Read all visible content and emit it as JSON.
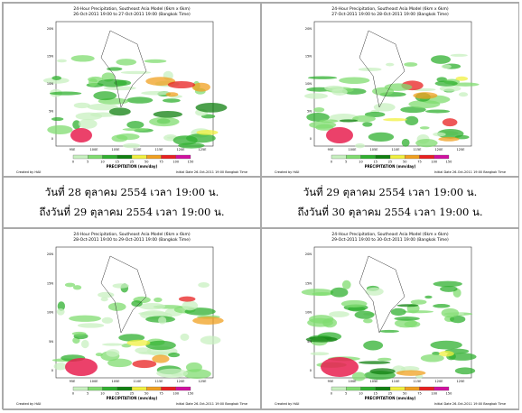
{
  "panels": [
    {
      "title": "24-Hour Precipitation, Southeast Asia Model (6km x 6km)",
      "period": "26-Oct-2011 19:00 to 27-Oct-2011 19:00 (Bangkok Time)",
      "colorbar_label": "PRECIPITATION (mm/day)",
      "colorbar_ticks": [
        "0",
        "5",
        "10",
        "15",
        "25",
        "50",
        "75",
        "100",
        "150"
      ],
      "credit": "Created by HAII",
      "initial": "Initial Date 26-Oct-2011 19:00 Bangkok Time",
      "lat_labels": [
        "20N",
        "15N",
        "10N",
        "5N",
        "0"
      ],
      "lon_labels": [
        "95E",
        "100E",
        "105E",
        "110E",
        "115E",
        "120E",
        "125E"
      ]
    },
    {
      "title": "24-Hour Precipitation, Southeast Asia Model (6km x 6km)",
      "period": "27-Oct-2011 19:00 to 28-Oct-2011 19:00 (Bangkok Time)",
      "colorbar_label": "PRECIPITATION (mm/day)",
      "colorbar_ticks": [
        "0",
        "5",
        "10",
        "15",
        "25",
        "50",
        "75",
        "100",
        "150"
      ],
      "credit": "Created by HAII",
      "initial": "Initial Date 26-Oct-2011 19:00 Bangkok Time",
      "lat_labels": [
        "20N",
        "15N",
        "10N",
        "5N",
        "0"
      ],
      "lon_labels": [
        "95E",
        "100E",
        "105E",
        "110E",
        "115E",
        "120E",
        "125E"
      ]
    },
    {
      "title": "24-Hour Precipitation, Southeast Asia Model (6km x 6km)",
      "period": "28-Oct-2011 19:00 to 29-Oct-2011 19:00 (Bangkok Time)",
      "colorbar_label": "PRECIPITATION (mm/day)",
      "colorbar_ticks": [
        "0",
        "5",
        "10",
        "15",
        "25",
        "50",
        "75",
        "100",
        "150"
      ],
      "credit": "Created by HAII",
      "initial": "Initial Date 26-Oct-2011 19:00 Bangkok Time",
      "lat_labels": [
        "20N",
        "15N",
        "10N",
        "5N",
        "0"
      ],
      "lon_labels": [
        "95E",
        "100E",
        "105E",
        "110E",
        "115E",
        "120E",
        "125E"
      ]
    },
    {
      "title": "24-Hour Precipitation, Southeast Asia Model (6km x 6km)",
      "period": "29-Oct-2011 19:00 to 30-Oct-2011 19:00 (Bangkok Time)",
      "colorbar_label": "PRECIPITATION (mm/day)",
      "colorbar_ticks": [
        "0",
        "5",
        "10",
        "15",
        "25",
        "50",
        "75",
        "100",
        "150"
      ],
      "credit": "Created by HAII",
      "initial": "Initial Date 26-Oct-2011 19:00 Bangkok Time",
      "lat_labels": [
        "20N",
        "15N",
        "10N",
        "5N",
        "0"
      ],
      "lon_labels": [
        "95E",
        "100E",
        "105E",
        "110E",
        "115E",
        "120E",
        "125E"
      ]
    }
  ],
  "captions": [
    [
      "วันที่ 28 ตุลาคม 2554 เวลา 19:00 น.",
      "ถึงวันที่ 29 ตุลาคม 2554 เวลา 19:00 น."
    ],
    [
      "วันที่ 29 ตุลาคม 2554 เวลา 19:00 น.",
      "ถึงวันที่ 30 ตุลาคม 2554 เวลา 19:00 น."
    ]
  ]
}
